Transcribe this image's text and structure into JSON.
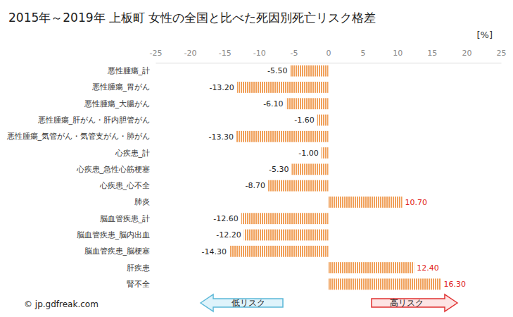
{
  "chart_data": {
    "type": "bar",
    "orientation": "horizontal",
    "title": "2015年～2019年 上板町 女性の全国と比べた死因別死亡リスク格差",
    "xlabel": "[%]",
    "categories": [
      "悪性腫瘍_計",
      "悪性腫瘍_胃がん",
      "悪性腫瘍_大腸がん",
      "悪性腫瘍_肝がん・肝内胆管がん",
      "悪性腫瘍_気管がん・気管支がん・肺がん",
      "心疾患_計",
      "心疾患_急性心筋梗塞",
      "心疾患_心不全",
      "肺炎",
      "脳血管疾患_計",
      "脳血管疾患_脳内出血",
      "脳血管疾患_脳梗塞",
      "肝疾患",
      "腎不全"
    ],
    "values": [
      -5.5,
      -13.2,
      -6.1,
      -1.6,
      -13.3,
      -1.0,
      -5.3,
      -8.7,
      10.7,
      -12.6,
      -12.2,
      -14.3,
      12.4,
      16.3
    ],
    "value_labels": [
      "-5.50",
      "-13.20",
      "-6.10",
      "-1.60",
      "-13.30",
      "-1.00",
      "-5.30",
      "-8.70",
      "10.70",
      "-12.60",
      "-12.20",
      "-14.30",
      "12.40",
      "16.30"
    ],
    "color": "#f0a05a",
    "xlim": [
      -25,
      25
    ],
    "xticks": [
      -25,
      -20,
      -15,
      -10,
      -5,
      0,
      5,
      10,
      15,
      20,
      25
    ],
    "grid": false,
    "data_labels": true,
    "annotations": [
      "低リスク",
      "高リスク",
      "© jp.gdfreak.com"
    ]
  }
}
